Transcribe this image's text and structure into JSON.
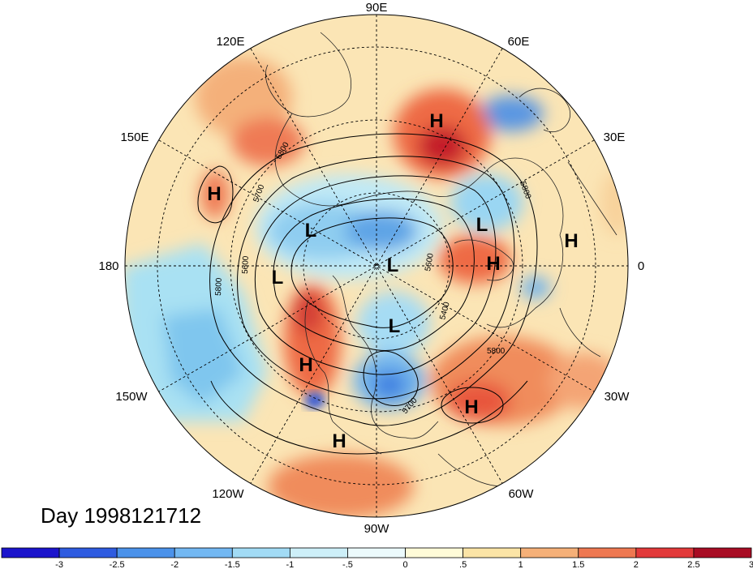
{
  "map": {
    "longitude_labels": [
      {
        "id": "90e",
        "text": "90E"
      },
      {
        "id": "60e",
        "text": "60E"
      },
      {
        "id": "30e",
        "text": "30E"
      },
      {
        "id": "0",
        "text": "0"
      },
      {
        "id": "30w",
        "text": "30W"
      },
      {
        "id": "60w",
        "text": "60W"
      },
      {
        "id": "90w",
        "text": "90W"
      },
      {
        "id": "120w",
        "text": "120W"
      },
      {
        "id": "150w",
        "text": "150W"
      },
      {
        "id": "180",
        "text": "180"
      },
      {
        "id": "150e",
        "text": "150E"
      },
      {
        "id": "120e",
        "text": "120E"
      }
    ],
    "pressure_systems": [
      {
        "id": "h-barents",
        "text": "H"
      },
      {
        "id": "h-pacific-west",
        "text": "H"
      },
      {
        "id": "l-east-siberia",
        "text": "L"
      },
      {
        "id": "l-europe",
        "text": "L"
      },
      {
        "id": "h-atlantic-east",
        "text": "H"
      },
      {
        "id": "h-north-africa",
        "text": "H"
      },
      {
        "id": "l-bering",
        "text": "L"
      },
      {
        "id": "l-pole",
        "text": "L"
      },
      {
        "id": "l-hudson",
        "text": "L"
      },
      {
        "id": "h-alaska",
        "text": "H"
      },
      {
        "id": "h-atlantic-mid",
        "text": "H"
      },
      {
        "id": "h-mexico",
        "text": "H"
      }
    ],
    "contour_labels": [
      {
        "id": "c5800-a",
        "text": "5800"
      },
      {
        "id": "c5700-a",
        "text": "5700"
      },
      {
        "id": "c5600",
        "text": "5600"
      },
      {
        "id": "c5800-b",
        "text": "5800"
      },
      {
        "id": "c5400",
        "text": "5400"
      },
      {
        "id": "c5800-c",
        "text": "5800"
      },
      {
        "id": "c5700-b",
        "text": "5700"
      },
      {
        "id": "c5800-d",
        "text": "5800"
      },
      {
        "id": "c5600-b",
        "text": "5600"
      }
    ],
    "day_label": "Day 1998121712",
    "colors": {
      "strong_cold": "#1e2bd6",
      "cold": "#4a8ee0",
      "cool": "#aee6f2",
      "neutral": "#fffbdc",
      "warm": "#f5c77e",
      "hot": "#ee5a3a",
      "strong_hot": "#a80c24"
    }
  },
  "colorbar": {
    "tick_labels": [
      "-3",
      "-2.5",
      "-2",
      "-1.5",
      "-1",
      "-.5",
      "0",
      ".5",
      "1",
      "1.5",
      "2",
      "2.5",
      "3"
    ],
    "colors": [
      "#1b14cc",
      "#2e5be0",
      "#4b92ea",
      "#73b8f2",
      "#a2dbf5",
      "#cdeff8",
      "#ecfafc",
      "#fffbd8",
      "#fbe4a6",
      "#f5b078",
      "#ee7851",
      "#e2393a",
      "#a80c24"
    ]
  }
}
